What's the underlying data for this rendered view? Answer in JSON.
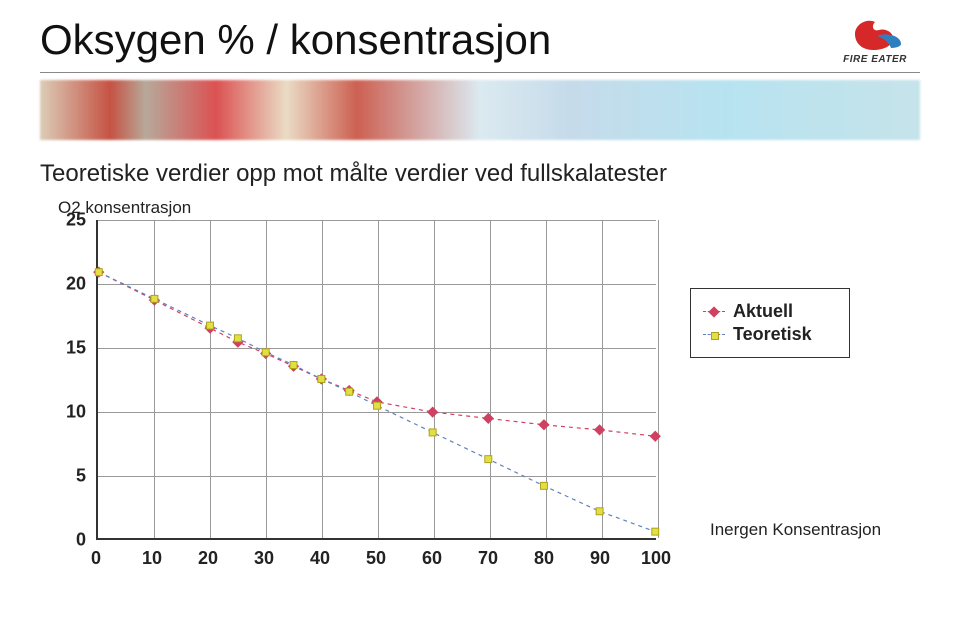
{
  "title": "Oksygen % / konsentrasjon",
  "logo": {
    "brand_text": "FIRE EATER",
    "flame_color": "#d62828",
    "stripe_color": "#2e7fbf"
  },
  "subtitle": "Teoretiske verdier opp mot målte verdier ved fullskalatester",
  "chart": {
    "type": "line",
    "y_label": "O2 konsentrasjon",
    "x_label": "Inergen Konsentrasjon",
    "ylim": [
      0,
      25
    ],
    "ytick_step": 5,
    "xlim": [
      0,
      100
    ],
    "xtick_step": 10,
    "background_color": "#ffffff",
    "grid_color": "#999999",
    "axis_color": "#333333",
    "label_fontsize": 17,
    "tick_fontsize": 18,
    "tick_fontweight": "700",
    "series": {
      "aktuell": {
        "label": "Aktuell",
        "color": "#d04060",
        "line_dash": "4 4",
        "line_width": 1.2,
        "marker": "diamond",
        "marker_size": 8,
        "x": [
          0,
          10,
          20,
          25,
          30,
          35,
          40,
          45,
          50,
          60,
          70,
          80,
          90,
          100
        ],
        "y": [
          20.9,
          18.7,
          16.5,
          15.4,
          14.5,
          13.5,
          12.5,
          11.6,
          10.7,
          9.9,
          9.4,
          8.9,
          8.5,
          8.0
        ]
      },
      "teoretisk": {
        "label": "Teoretisk",
        "color": "#6080c0",
        "line_dash": "4 4",
        "line_width": 1.2,
        "marker": "square",
        "marker_fill": "#e0e040",
        "marker_stroke": "#b0a020",
        "marker_size": 7,
        "x": [
          0,
          10,
          20,
          25,
          30,
          35,
          40,
          45,
          50,
          60,
          70,
          80,
          90,
          100
        ],
        "y": [
          20.9,
          18.8,
          16.7,
          15.7,
          14.6,
          13.6,
          12.5,
          11.5,
          10.4,
          8.3,
          6.2,
          4.1,
          2.1,
          0.5
        ]
      }
    },
    "legend": {
      "position": "right",
      "items": [
        "Aktuell",
        "Teoretisk"
      ],
      "border_color": "#333333",
      "fontsize": 18,
      "fontweight": "700"
    }
  }
}
